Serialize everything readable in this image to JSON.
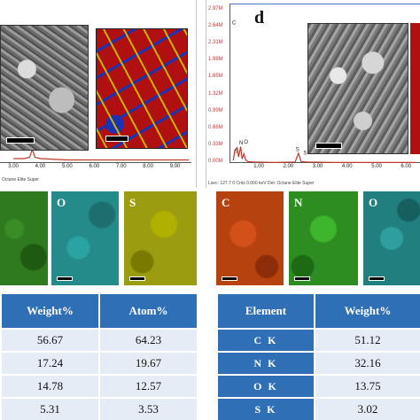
{
  "top_left_panel": {
    "x_ticks": [
      "3.00",
      "4.00",
      "5.00",
      "6.00",
      "7.00",
      "8.00",
      "9.00"
    ],
    "caption": "Octane Elite Super",
    "colors": {
      "spectrum": "#c0392b",
      "map_red": "#b01010",
      "map_yellow": "#c8b400",
      "map_blue": "#1b33b3"
    }
  },
  "top_right_panel": {
    "panel_letter": "d",
    "y_ticks": [
      "2.97M",
      "2.64M",
      "2.31M",
      "1.98M",
      "1.65M",
      "1.32M",
      "0.99M",
      "0.66M",
      "0.33M",
      "0.00M"
    ],
    "peak_labels": [
      "C",
      "S",
      "N",
      "O",
      "S",
      "S"
    ],
    "x_ticks": [
      "1.00",
      "2.00",
      "3.00",
      "4.00",
      "5.00",
      "6.00"
    ],
    "caption": "Lsec: 127.7   0 Cnts   0.000 keV   Det: Octane Elite Super",
    "colors": {
      "spectrum": "#c0392b",
      "axis_top": "#4a73c9"
    }
  },
  "element_maps": {
    "left": [
      {
        "label": "",
        "color": "#2f7a1f"
      },
      {
        "label": "O",
        "color": "#248a8a"
      },
      {
        "label": "S",
        "color": "#9c9c10"
      }
    ],
    "right": [
      {
        "label": "C",
        "color": "#b5420f"
      },
      {
        "label": "N",
        "color": "#2d8d21"
      },
      {
        "label": "O",
        "color": "#217f7f"
      }
    ]
  },
  "left_table": {
    "headers": [
      "Weight%",
      "Atom%"
    ],
    "rows": [
      [
        "56.67",
        "64.23"
      ],
      [
        "17.24",
        "19.67"
      ],
      [
        "14.78",
        "12.57"
      ],
      [
        "5.31",
        "3.53"
      ]
    ]
  },
  "right_table": {
    "headers": [
      "Element",
      "Weight%"
    ],
    "rows": [
      [
        "C K",
        "51.12"
      ],
      [
        "N K",
        "32.16"
      ],
      [
        "O K",
        "13.75"
      ],
      [
        "S K",
        "3.02"
      ]
    ]
  },
  "chart_data": [
    {
      "type": "line",
      "xlabel": "",
      "ylabel": "",
      "x_ticks": [
        3,
        4,
        5,
        6,
        7,
        8,
        9
      ],
      "xlim": [
        2.5,
        9.6
      ],
      "x": [
        3.0,
        3.4,
        3.6,
        3.7,
        3.8,
        4.0,
        5.0,
        6.0,
        7.0,
        8.0,
        9.0,
        9.5
      ],
      "y": [
        0.02,
        0.02,
        0.03,
        0.09,
        0.03,
        0.02,
        0.01,
        0.01,
        0.01,
        0.01,
        0.01,
        0.01
      ],
      "ylim": [
        0,
        1
      ]
    },
    {
      "type": "line",
      "xlabel": "",
      "ylabel": "",
      "ylim": [
        0,
        2.97
      ],
      "xlim": [
        0,
        6.5
      ],
      "x_ticks": [
        1,
        2,
        3,
        4,
        5,
        6
      ],
      "x": [
        0.1,
        0.15,
        0.23,
        0.28,
        0.35,
        0.4,
        0.46,
        0.52,
        0.6,
        0.8,
        1.5,
        2.2,
        2.31,
        2.4,
        2.6,
        3.5,
        5.0,
        6.3
      ],
      "y": [
        0.05,
        0.25,
        0.3,
        0.12,
        0.32,
        0.08,
        0.18,
        0.06,
        0.03,
        0.02,
        0.01,
        0.02,
        0.19,
        0.03,
        0.02,
        0.01,
        0.01,
        0.01
      ]
    }
  ]
}
